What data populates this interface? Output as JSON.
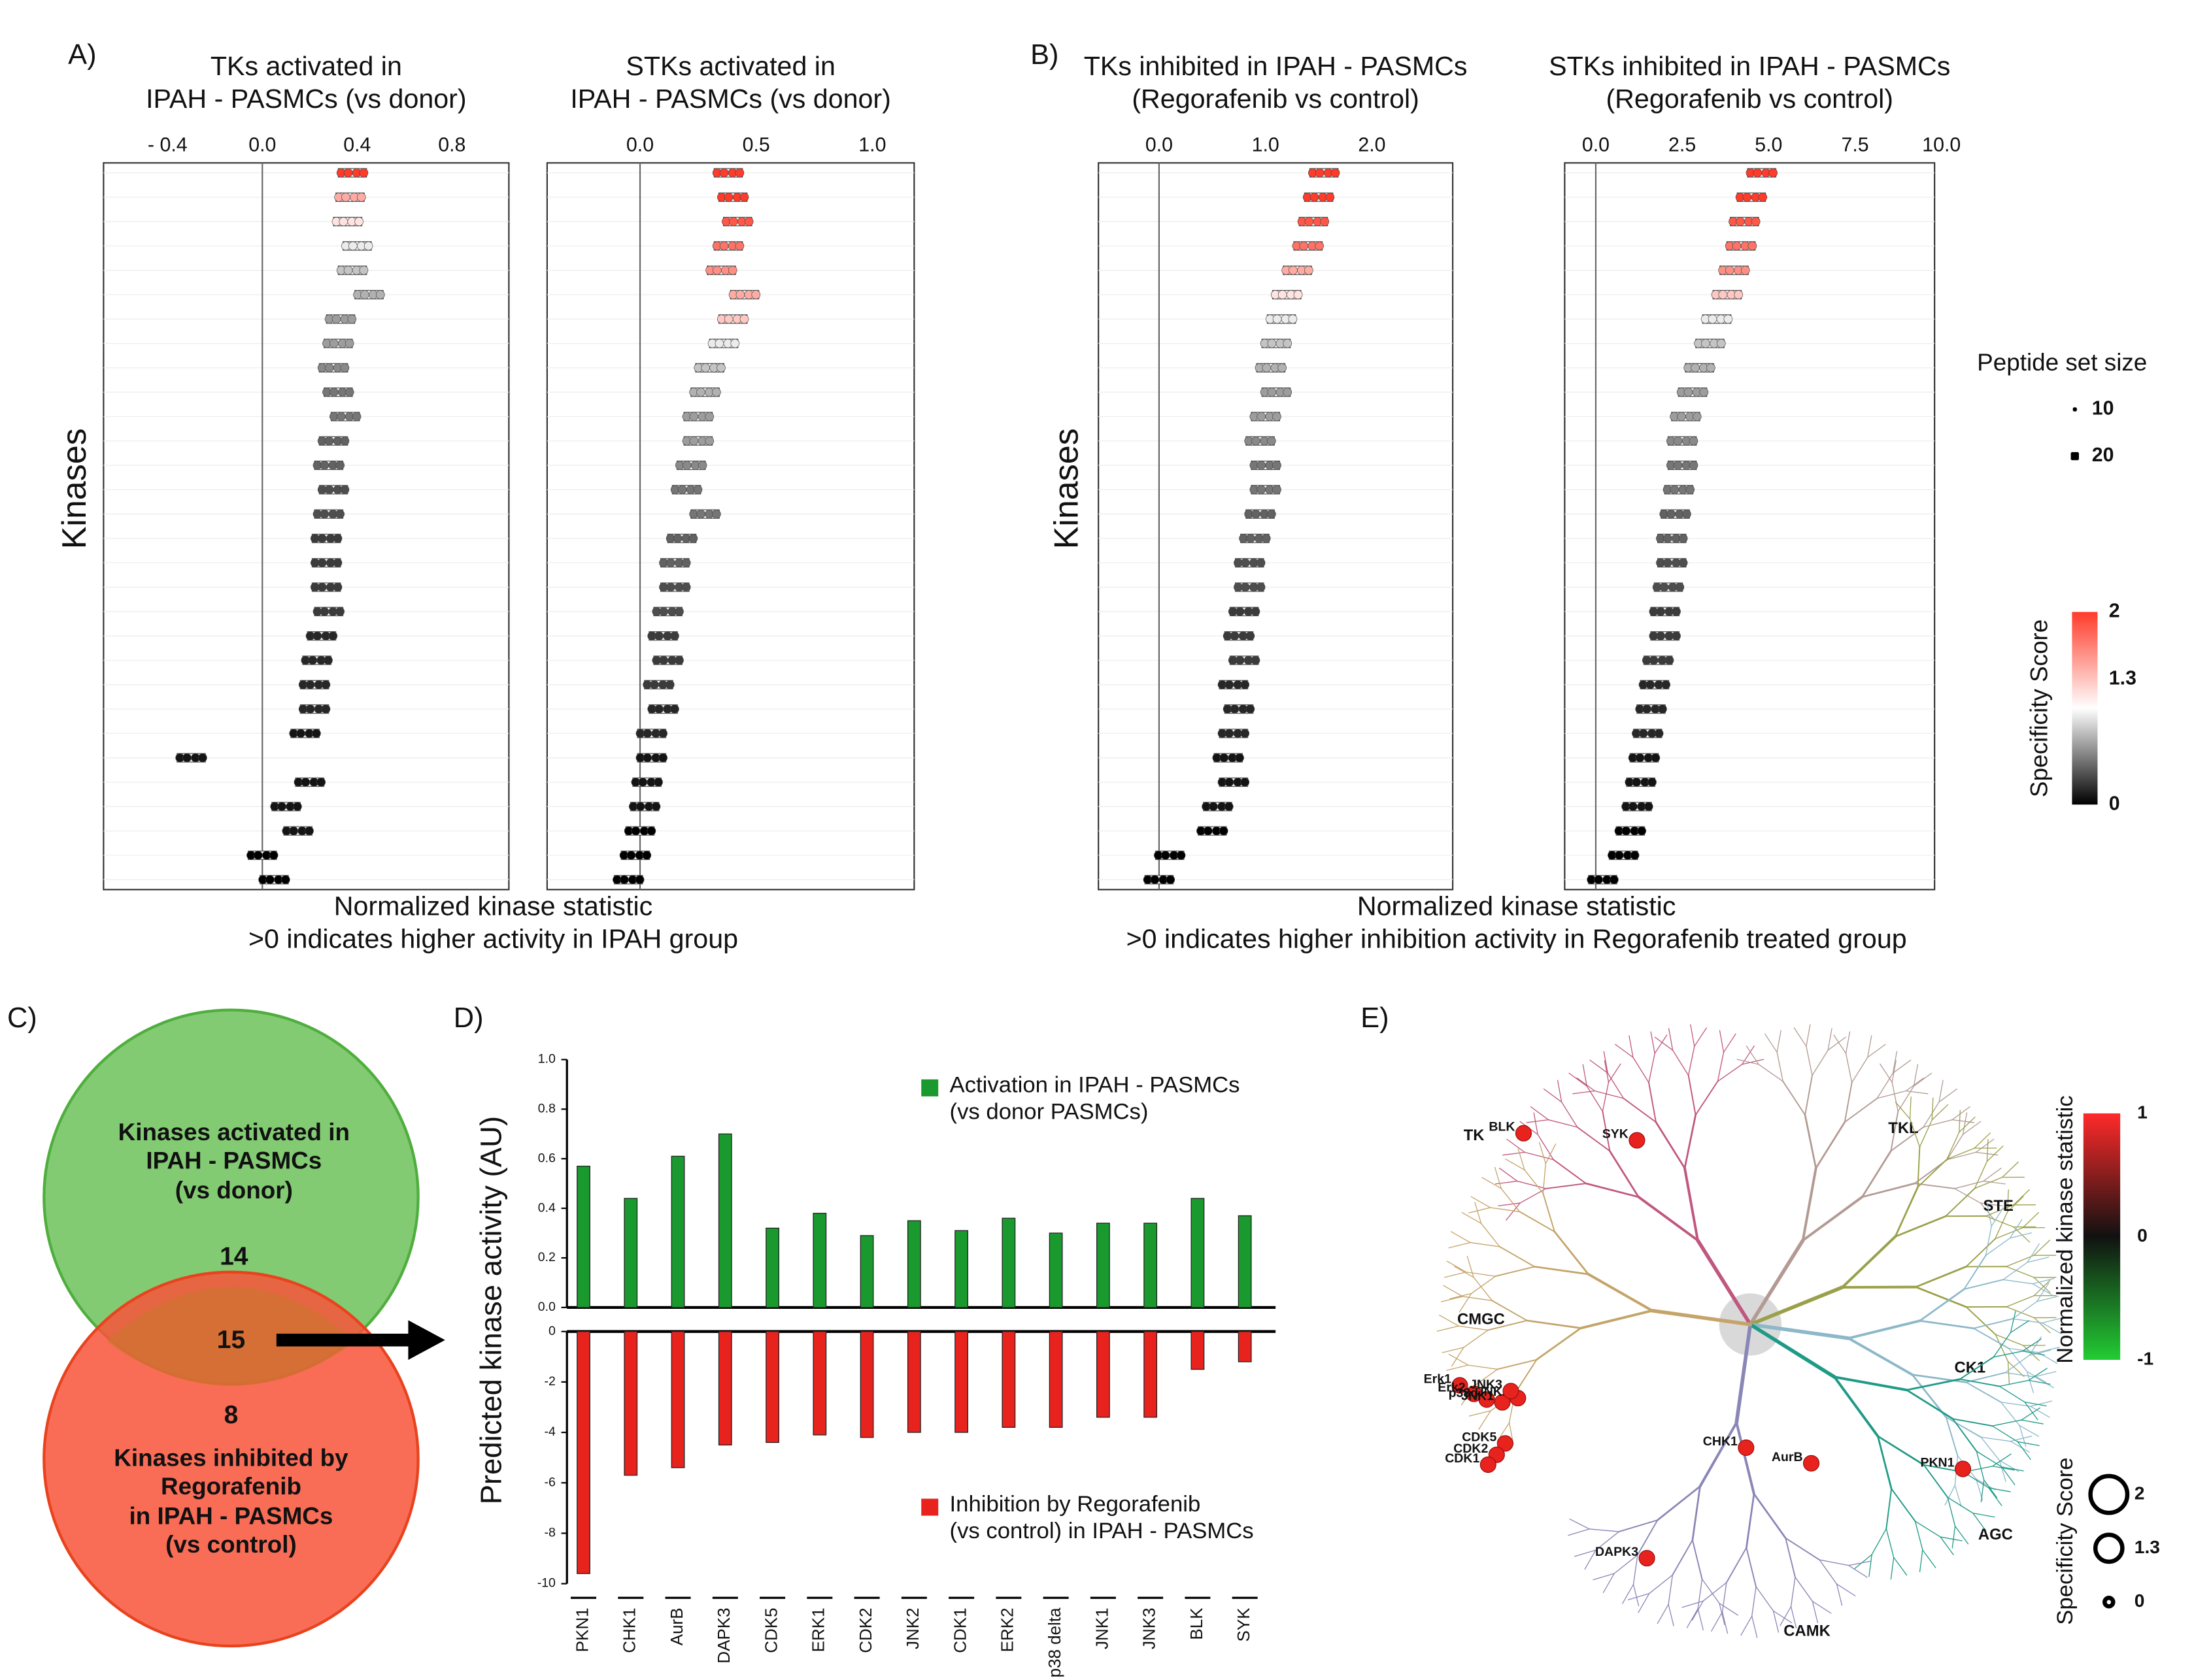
{
  "panel_labels": {
    "A": "A)",
    "B": "B)",
    "C": "C)",
    "D": "D)",
    "E": "E)"
  },
  "panel_ab": {
    "ylabel": "Kinases",
    "xlabel_a": "Normalized kinase statistic\n>0 indicates higher activity in IPAH group",
    "xlabel_b": "Normalized kinase statistic\n>0 indicates higher inhibition activity in Regorafenib treated group",
    "legend": {
      "size_title": "Peptide set size",
      "sizes": [
        10,
        20
      ],
      "color_title": "Specificity Score",
      "color_ticks": [
        2,
        1.3,
        0
      ],
      "colors": [
        "#000000",
        "#ffffff",
        "#ff3b2a"
      ]
    }
  },
  "chart_data": [
    {
      "type": "strip",
      "title": "TKs activated in\nIPAH - PASMCs (vs donor)",
      "xlim": [
        -0.67,
        1.04
      ],
      "xticks": [
        {
          "value": -0.4,
          "label": "- 0.4"
        },
        {
          "value": 0,
          "label": "0.0"
        },
        0.4,
        0.8
      ],
      "values": [
        0.38,
        0.37,
        0.36,
        0.4,
        0.38,
        0.45,
        0.33,
        0.32,
        0.3,
        0.32,
        0.35,
        0.3,
        0.28,
        0.3,
        0.28,
        0.27,
        0.27,
        0.27,
        0.28,
        0.25,
        0.23,
        0.22,
        0.22,
        0.18,
        -0.3,
        0.2,
        0.1,
        0.15,
        0,
        0.05
      ],
      "scores": [
        2,
        1.6,
        1.4,
        1.2,
        1,
        0.9,
        0.8,
        0.8,
        0.7,
        0.6,
        0.6,
        0.5,
        0.5,
        0.4,
        0.4,
        0.3,
        0.3,
        0.3,
        0.3,
        0.2,
        0.2,
        0.2,
        0.2,
        0.1,
        0.1,
        0.1,
        0.1,
        0.1,
        0,
        0
      ]
    },
    {
      "type": "strip",
      "title": "STKs activated in\nIPAH - PASMCs (vs donor)",
      "xlim": [
        -0.4,
        1.18
      ],
      "xticks": [
        {
          "value": 0,
          "label": "0.0"
        },
        0.5,
        {
          "value": 1,
          "label": "1.0"
        }
      ],
      "values": [
        0.38,
        0.4,
        0.42,
        0.38,
        0.35,
        0.45,
        0.4,
        0.36,
        0.3,
        0.28,
        0.25,
        0.25,
        0.22,
        0.2,
        0.28,
        0.18,
        0.15,
        0.15,
        0.12,
        0.1,
        0.12,
        0.08,
        0.1,
        0.05,
        0.05,
        0.03,
        0.02,
        0,
        -0.02,
        -0.05
      ],
      "scores": [
        2,
        2,
        1.9,
        1.8,
        1.7,
        1.6,
        1.5,
        1.2,
        1,
        0.9,
        0.8,
        0.8,
        0.7,
        0.6,
        0.6,
        0.5,
        0.5,
        0.4,
        0.4,
        0.3,
        0.3,
        0.3,
        0.2,
        0.2,
        0.1,
        0.1,
        0.1,
        0,
        0,
        0
      ]
    },
    {
      "type": "strip",
      "title": "TKs inhibited in IPAH - PASMCs\n(Regorafenib vs control)",
      "xlim": [
        -0.57,
        2.76
      ],
      "xticks": [
        {
          "value": 0,
          "label": "0.0"
        },
        {
          "value": 1,
          "label": "1.0"
        },
        {
          "value": 2,
          "label": "2.0"
        }
      ],
      "values": [
        1.55,
        1.5,
        1.45,
        1.4,
        1.3,
        1.2,
        1.15,
        1.1,
        1.05,
        1.1,
        1,
        0.95,
        1,
        1,
        0.95,
        0.9,
        0.85,
        0.85,
        0.8,
        0.75,
        0.8,
        0.7,
        0.75,
        0.7,
        0.65,
        0.7,
        0.55,
        0.5,
        0.1,
        0
      ],
      "scores": [
        2,
        2,
        1.9,
        1.8,
        1.6,
        1.4,
        1.2,
        1,
        0.9,
        0.8,
        0.8,
        0.7,
        0.6,
        0.6,
        0.5,
        0.5,
        0.4,
        0.4,
        0.3,
        0.3,
        0.3,
        0.2,
        0.2,
        0.2,
        0.1,
        0.1,
        0.1,
        0,
        0,
        0
      ]
    },
    {
      "type": "strip",
      "title": "STKs inhibited in IPAH - PASMCs\n(Regorafenib vs control)",
      "xlim": [
        -0.9,
        9.8
      ],
      "xticks": [
        {
          "value": 0,
          "label": "0.0"
        },
        2.5,
        {
          "value": 5,
          "label": "5.0"
        },
        7.5,
        {
          "value": 10,
          "label": "10.0"
        }
      ],
      "values": [
        4.8,
        4.5,
        4.3,
        4.2,
        4,
        3.8,
        3.5,
        3.3,
        3,
        2.8,
        2.6,
        2.5,
        2.5,
        2.4,
        2.3,
        2.2,
        2.2,
        2.1,
        2,
        2,
        1.8,
        1.7,
        1.6,
        1.5,
        1.4,
        1.3,
        1.2,
        1,
        0.8,
        0.2
      ],
      "scores": [
        2,
        2,
        1.9,
        1.8,
        1.7,
        1.5,
        1.2,
        1,
        0.9,
        0.8,
        0.8,
        0.7,
        0.6,
        0.6,
        0.5,
        0.5,
        0.4,
        0.4,
        0.3,
        0.3,
        0.3,
        0.2,
        0.2,
        0.2,
        0.1,
        0.1,
        0.1,
        0,
        0,
        0
      ]
    },
    {
      "type": "bar",
      "ylabel": "Predicted kinase activity (AU)",
      "categories": [
        "PKN1",
        "CHK1",
        "AurB",
        "DAPK3",
        "CDK5",
        "ERK1",
        "CDK2",
        "JNK2",
        "CDK1",
        "ERK2",
        "p38 delta",
        "JNK1",
        "JNK3",
        "BLK",
        "SYK"
      ],
      "series": [
        {
          "name": "Activation in IPAH - PASMCs\n(vs donor PASMCs)",
          "color": "#1a9a2e",
          "values": [
            0.57,
            0.44,
            0.61,
            0.7,
            0.32,
            0.38,
            0.29,
            0.35,
            0.31,
            0.36,
            0.3,
            0.34,
            0.34,
            0.44,
            0.37
          ]
        },
        {
          "name": "Inhibition by Regorafenib\n(vs control) in IPAH - PASMCs",
          "color": "#e8231e",
          "axis": "y2",
          "values": [
            -9.6,
            -5.7,
            -5.4,
            -4.5,
            -4.4,
            -4.1,
            -4.2,
            -4,
            -4,
            -3.8,
            -3.8,
            -3.4,
            -3.4,
            -1.5,
            -1.2
          ]
        }
      ],
      "ylim": [
        0,
        1
      ],
      "yticks": [
        {
          "value": 0,
          "label": "0.0"
        },
        0.2,
        0.4,
        0.6,
        0.8,
        {
          "value": 1,
          "label": "1.0"
        }
      ],
      "y2lim": [
        -10,
        0
      ],
      "y2ticks": [
        0,
        -2,
        -4,
        -6,
        -8,
        -10
      ]
    }
  ],
  "venn": {
    "set_a": "Kinases activated in\nIPAH - PASMCs\n(vs donor)",
    "only_a": 14,
    "both": 15,
    "only_b": 8,
    "set_b": "Kinases inhibited by\nRegorafenib\nin IPAH - PASMCs\n(vs control)"
  },
  "tree": {
    "groups": [
      "TK",
      "TKL",
      "STE",
      "CK1",
      "AGC",
      "CAMK",
      "CMGC"
    ],
    "kinases": [
      "BLK",
      "SYK",
      "Erk1",
      "Erk2",
      "p38d",
      "JNK1",
      "JNK2",
      "JNK3",
      "CDK5",
      "CDK2",
      "CDK1",
      "CHK1",
      "AurB",
      "PKN1",
      "DAPK3"
    ],
    "stat_title": "Normalized kinase statistic",
    "stat_ticks": [
      1,
      0,
      -1
    ],
    "score_title": "Specificity Score",
    "score_ticks": [
      2,
      1.3,
      0
    ]
  }
}
